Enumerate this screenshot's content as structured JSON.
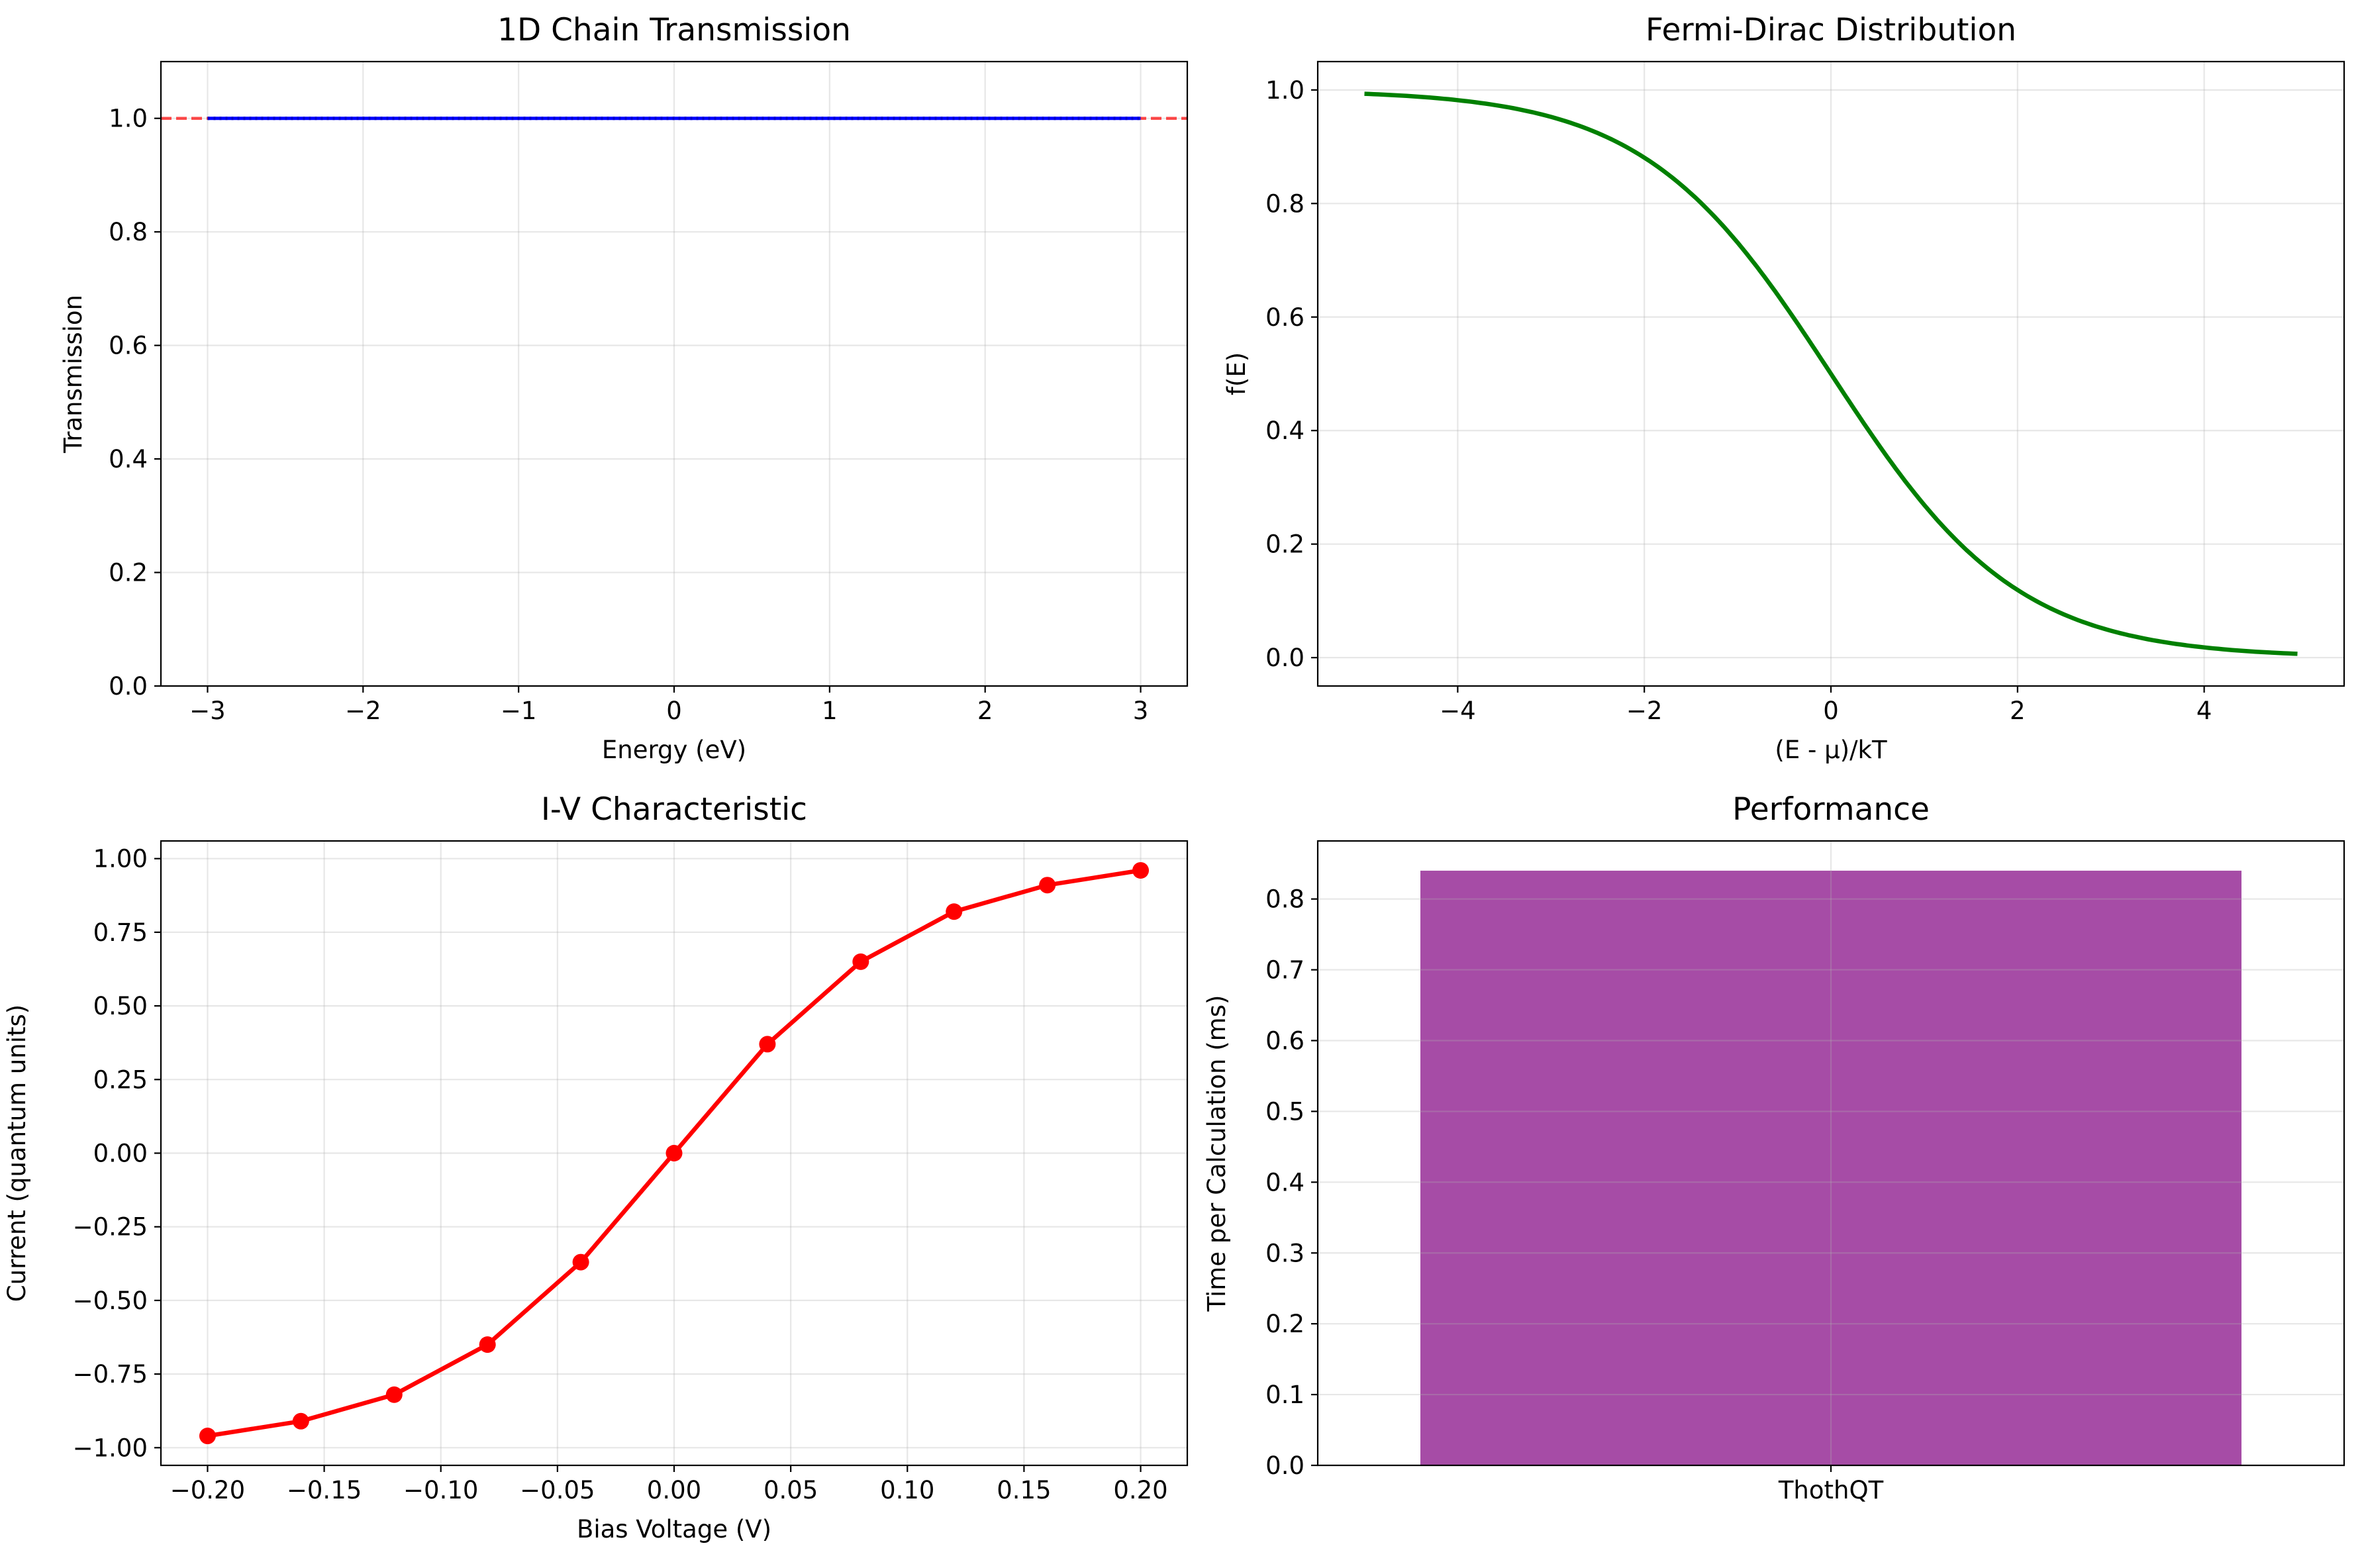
{
  "chart_data": [
    {
      "type": "line",
      "title": "1D Chain Transmission",
      "xlabel": "Energy (eV)",
      "ylabel": "Transmission",
      "xlim": [
        -3.3,
        3.3
      ],
      "ylim": [
        0.0,
        1.1
      ],
      "xticks": [
        -3,
        -2,
        -1,
        0,
        1,
        2,
        3
      ],
      "xtick_labels": [
        "−3",
        "−2",
        "−1",
        "0",
        "1",
        "2",
        "3"
      ],
      "yticks": [
        0.0,
        0.2,
        0.4,
        0.6,
        0.8,
        1.0
      ],
      "ytick_labels": [
        "0.0",
        "0.2",
        "0.4",
        "0.6",
        "0.8",
        "1.0"
      ],
      "grid": true,
      "series": [
        {
          "color": "#0000ff",
          "style": "solid",
          "x": [
            -3,
            3
          ],
          "y": [
            1.0,
            1.0
          ]
        }
      ],
      "reference_lines": [
        {
          "orientation": "horizontal",
          "y": 1.0,
          "color": "#ff0000",
          "style": "dashed"
        }
      ]
    },
    {
      "type": "line",
      "title": "Fermi-Dirac Distribution",
      "xlabel": "(E - μ)/kT",
      "ylabel": "f(E)",
      "xlim": [
        -5.5,
        5.5
      ],
      "ylim": [
        -0.05,
        1.05
      ],
      "xticks": [
        -4,
        -2,
        0,
        2,
        4
      ],
      "xtick_labels": [
        "−4",
        "−2",
        "0",
        "2",
        "4"
      ],
      "yticks": [
        0.0,
        0.2,
        0.4,
        0.6,
        0.8,
        1.0
      ],
      "ytick_labels": [
        "0.0",
        "0.2",
        "0.4",
        "0.6",
        "0.8",
        "1.0"
      ],
      "grid": true,
      "series": [
        {
          "color": "#008000",
          "x": [
            -5,
            -4.5,
            -4,
            -3.5,
            -3,
            -2.5,
            -2,
            -1.5,
            -1,
            -0.5,
            0,
            0.5,
            1,
            1.5,
            2,
            2.5,
            3,
            3.5,
            4,
            4.5,
            5
          ],
          "y": [
            0.9933,
            0.989,
            0.982,
            0.9707,
            0.9526,
            0.9241,
            0.8808,
            0.8176,
            0.7311,
            0.6225,
            0.5,
            0.3775,
            0.2689,
            0.1824,
            0.1192,
            0.0759,
            0.0474,
            0.0293,
            0.018,
            0.011,
            0.0067
          ]
        }
      ]
    },
    {
      "type": "line",
      "title": "I-V Characteristic",
      "xlabel": "Bias Voltage (V)",
      "ylabel": "Current (quantum units)",
      "xlim": [
        -0.22,
        0.22
      ],
      "ylim": [
        -1.06,
        1.06
      ],
      "xticks": [
        -0.2,
        -0.15,
        -0.1,
        -0.05,
        0.0,
        0.05,
        0.1,
        0.15,
        0.2
      ],
      "xtick_labels": [
        "−0.20",
        "−0.15",
        "−0.10",
        "−0.05",
        "0.00",
        "0.05",
        "0.10",
        "0.15",
        "0.20"
      ],
      "yticks": [
        -1.0,
        -0.75,
        -0.5,
        -0.25,
        0.0,
        0.25,
        0.5,
        0.75,
        1.0
      ],
      "ytick_labels": [
        "−1.00",
        "−0.75",
        "−0.50",
        "−0.25",
        "0.00",
        "0.25",
        "0.50",
        "0.75",
        "1.00"
      ],
      "grid": true,
      "series": [
        {
          "color": "#ff0000",
          "marker": "circle",
          "x": [
            -0.2,
            -0.16,
            -0.12,
            -0.08,
            -0.04,
            0.0,
            0.04,
            0.08,
            0.12,
            0.16,
            0.2
          ],
          "y": [
            -0.96,
            -0.91,
            -0.82,
            -0.65,
            -0.37,
            0.0,
            0.37,
            0.65,
            0.82,
            0.91,
            0.96
          ]
        }
      ]
    },
    {
      "type": "bar",
      "title": "Performance",
      "xlabel": "",
      "ylabel": "Time per Calculation (ms)",
      "categories": [
        "ThothQT"
      ],
      "values": [
        0.84
      ],
      "color": "#a64ca6",
      "ylim": [
        0.0,
        0.882
      ],
      "yticks": [
        0.0,
        0.1,
        0.2,
        0.3,
        0.4,
        0.5,
        0.6,
        0.7,
        0.8
      ],
      "ytick_labels": [
        "0.0",
        "0.1",
        "0.2",
        "0.3",
        "0.4",
        "0.5",
        "0.6",
        "0.7",
        "0.8"
      ],
      "grid": true
    }
  ]
}
